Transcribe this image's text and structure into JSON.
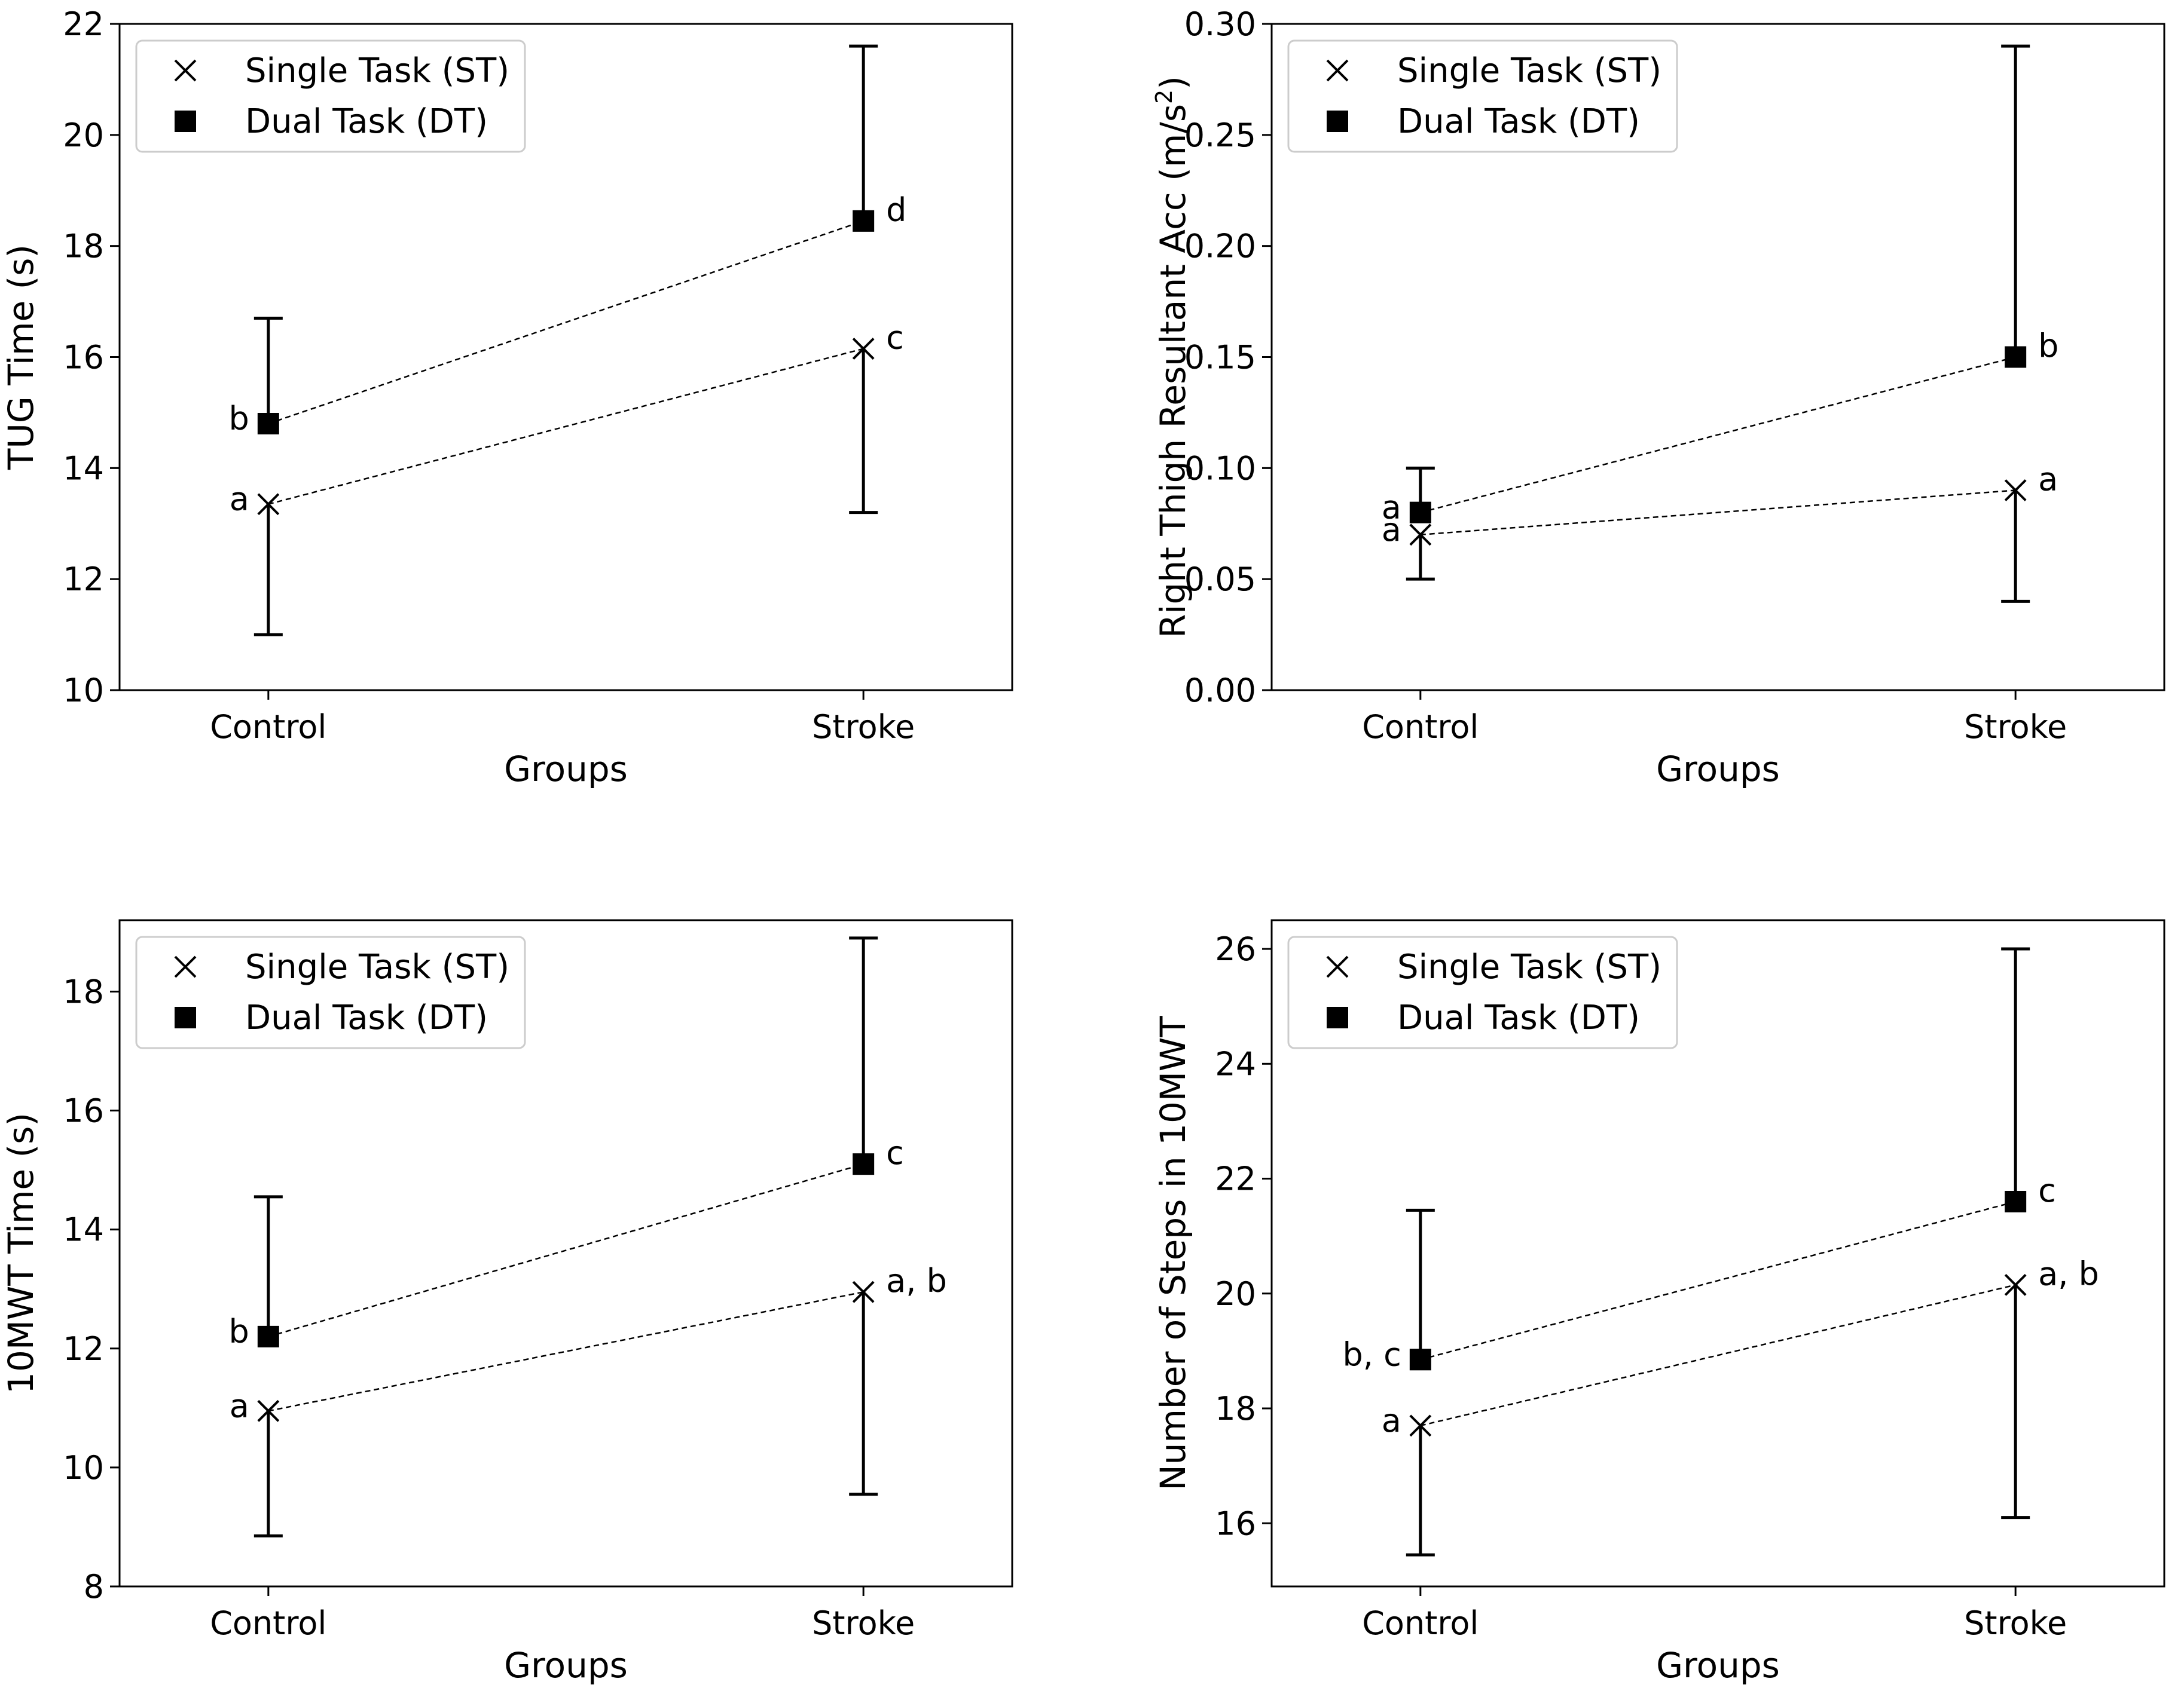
{
  "chart_data": [
    {
      "type": "scatter",
      "xlabel": "Groups",
      "ylabel": "TUG Time (s)",
      "ylim": [
        10,
        22
      ],
      "yticks": [
        "10",
        "12",
        "14",
        "16",
        "18",
        "20",
        "22"
      ],
      "categories": [
        "Control",
        "Stroke"
      ],
      "legend": [
        "Single Task (ST)",
        "Dual Task (DT)"
      ],
      "legend_position": "top-left",
      "series": [
        {
          "name": "Single Task (ST)",
          "marker": "x",
          "values": [
            13.35,
            16.15
          ],
          "err_low": [
            11.0,
            13.2
          ],
          "err_high": [
            13.35,
            16.15
          ],
          "labels": [
            "a",
            "c"
          ]
        },
        {
          "name": "Dual Task (DT)",
          "marker": "square",
          "values": [
            14.8,
            18.45
          ],
          "err_low": [
            14.8,
            18.45
          ],
          "err_high": [
            16.7,
            21.6
          ],
          "labels": [
            "b",
            "d"
          ]
        }
      ]
    },
    {
      "type": "scatter",
      "xlabel": "Groups",
      "ylabel": "Right Thigh Resultant Acc (m/s",
      "ylabel_superscript": "2",
      "ylabel_suffix": ")",
      "ylim": [
        0,
        0.3
      ],
      "yticks": [
        "0.00",
        "0.05",
        "0.10",
        "0.15",
        "0.20",
        "0.25",
        "0.30"
      ],
      "categories": [
        "Control",
        "Stroke"
      ],
      "legend": [
        "Single Task (ST)",
        "Dual Task (DT)"
      ],
      "legend_position": "top-left",
      "series": [
        {
          "name": "Single Task (ST)",
          "marker": "x",
          "values": [
            0.07,
            0.09
          ],
          "err_low": [
            0.05,
            0.04
          ],
          "err_high": [
            0.07,
            0.09
          ],
          "labels": [
            "a",
            "a"
          ]
        },
        {
          "name": "Dual Task (DT)",
          "marker": "square",
          "values": [
            0.08,
            0.15
          ],
          "err_low": [
            0.08,
            0.15
          ],
          "err_high": [
            0.1,
            0.29
          ],
          "labels": [
            "a",
            "b"
          ]
        }
      ]
    },
    {
      "type": "scatter",
      "xlabel": "Groups",
      "ylabel": "10MWT Time (s)",
      "ylim": [
        8,
        19.2
      ],
      "yticks": [
        "8",
        "10",
        "12",
        "14",
        "16",
        "18"
      ],
      "categories": [
        "Control",
        "Stroke"
      ],
      "legend": [
        "Single Task (ST)",
        "Dual Task (DT)"
      ],
      "legend_position": "top-left",
      "series": [
        {
          "name": "Single Task (ST)",
          "marker": "x",
          "values": [
            10.95,
            12.95
          ],
          "err_low": [
            8.85,
            9.55
          ],
          "err_high": [
            10.95,
            12.95
          ],
          "labels": [
            "a",
            "a, b"
          ]
        },
        {
          "name": "Dual Task (DT)",
          "marker": "square",
          "values": [
            12.2,
            15.1
          ],
          "err_low": [
            12.2,
            15.1
          ],
          "err_high": [
            14.55,
            18.9
          ],
          "labels": [
            "b",
            "c"
          ]
        }
      ]
    },
    {
      "type": "scatter",
      "xlabel": "Groups",
      "ylabel": "Number of Steps in 10MWT",
      "ylim": [
        14.9,
        26.5
      ],
      "yticks": [
        "16",
        "18",
        "20",
        "22",
        "24",
        "26"
      ],
      "categories": [
        "Control",
        "Stroke"
      ],
      "legend": [
        "Single Task (ST)",
        "Dual Task (DT)"
      ],
      "legend_position": "top-left",
      "series": [
        {
          "name": "Single Task (ST)",
          "marker": "x",
          "values": [
            17.7,
            20.15
          ],
          "err_low": [
            15.45,
            16.1
          ],
          "err_high": [
            17.7,
            20.15
          ],
          "labels": [
            "a",
            "a, b"
          ]
        },
        {
          "name": "Dual Task (DT)",
          "marker": "square",
          "values": [
            18.85,
            21.6
          ],
          "err_low": [
            18.85,
            21.6
          ],
          "err_high": [
            21.45,
            26.0
          ],
          "labels": [
            "b, c",
            "c"
          ]
        }
      ]
    }
  ]
}
